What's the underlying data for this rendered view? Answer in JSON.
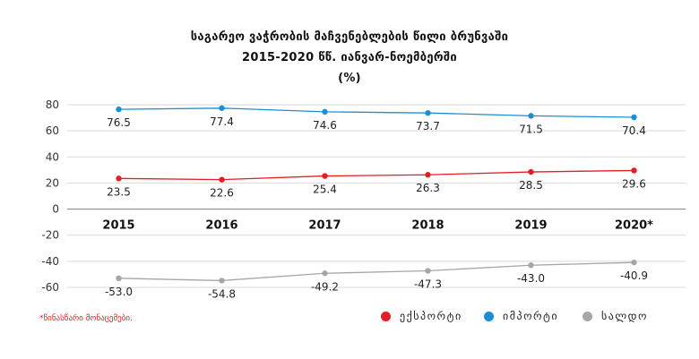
{
  "title_lines": [
    "საგარეო ვაჭრობის მაჩვენებლების წილი ბრუნვაში",
    "2015-2020 წწ. იანვარ-ნოემბერში",
    "(%)"
  ],
  "footnote": "*წინასწარი მონაცემები.",
  "colors": {
    "export": "#e31e24",
    "import": "#1a8fd6",
    "balance": "#a6a6a6",
    "grid": "#d9d9d9",
    "axis": "#7f7f7f"
  },
  "chart_data": {
    "type": "line",
    "title": "საგარეო ვაჭრობის მაჩვენებლების წილი ბრუნვაში",
    "subtitle": "2015-2020 წწ. იანვარ-ნოემბერში",
    "ylabel": "(%)",
    "xlabel": "",
    "categories": [
      "2015",
      "2016",
      "2017",
      "2018",
      "2019",
      "2020*"
    ],
    "ylim": [
      -60,
      80
    ],
    "yticks": [
      "80",
      "60",
      "40",
      "20",
      "0",
      "-20",
      "-40",
      "-60"
    ],
    "grid": true,
    "legend_position": "bottom-right",
    "series": [
      {
        "key": "import",
        "name": "იმპორტი",
        "values": [
          76.5,
          77.4,
          74.6,
          73.7,
          71.5,
          70.4
        ],
        "labels": [
          "76.5",
          "77.4",
          "74.6",
          "73.7",
          "71.5",
          "70.4"
        ]
      },
      {
        "key": "export",
        "name": "ექსპორტი",
        "values": [
          23.5,
          22.6,
          25.4,
          26.3,
          28.5,
          29.6
        ],
        "labels": [
          "23.5",
          "22.6",
          "25.4",
          "26.3",
          "28.5",
          "29.6"
        ]
      },
      {
        "key": "balance",
        "name": "სალდო",
        "values": [
          -53.0,
          -54.8,
          -49.2,
          -47.3,
          -43.0,
          -40.9
        ],
        "labels": [
          "-53.0",
          "-54.8",
          "-49.2",
          "-47.3",
          "-43.0",
          "-40.9"
        ]
      }
    ]
  },
  "legend": [
    {
      "key": "export",
      "label": "ექსპორტი"
    },
    {
      "key": "import",
      "label": "იმპორტი"
    },
    {
      "key": "balance",
      "label": "სალდო"
    }
  ]
}
